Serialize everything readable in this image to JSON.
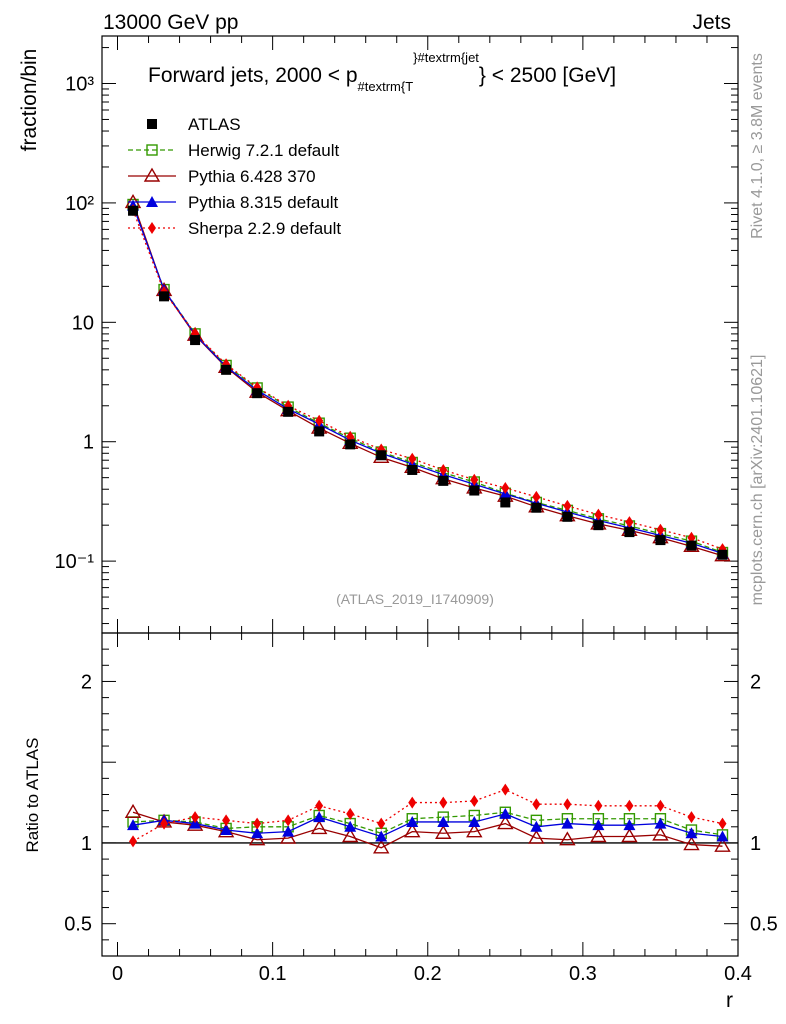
{
  "header": {
    "energy_label": "13000 GeV pp",
    "category": "Jets"
  },
  "side_labels": {
    "rivet": "Rivet 4.1.0, ≥ 3.8M events",
    "source": "mcplots.cern.ch [arXiv:2401.10621]"
  },
  "colors": {
    "ATLAS": "#000000",
    "Herwig": "#339900",
    "Pythia6": "#990000",
    "Pythia8": "#0000dd",
    "Sherpa": "#ee0000"
  },
  "chart_data": [
    {
      "type": "line",
      "title": "Forward jets, 2000 < p_{#textrm{T}}^{#textrm{jet}} < 2500 [GeV]",
      "title_parts": {
        "pre": "Forward jets, 2000 < p",
        "sub": "#textrm{T",
        "sup": "}#textrm{jet",
        "post": "} < 2500 [GeV]"
      },
      "ylabel": "fraction/bin",
      "xlabel": "r",
      "yscale": "log",
      "xlim": [
        -0.01,
        0.4
      ],
      "ylim": [
        0.025,
        2500
      ],
      "ytick_labels": [
        "10⁻¹",
        "1",
        "10",
        "10²",
        "10³"
      ],
      "ytick_values": [
        0.1,
        1,
        10,
        100,
        1000
      ],
      "watermark": "(ATLAS_2019_I1740909)",
      "x": [
        0.01,
        0.03,
        0.05,
        0.07,
        0.09,
        0.11,
        0.13,
        0.15,
        0.17,
        0.19,
        0.21,
        0.23,
        0.25,
        0.27,
        0.29,
        0.31,
        0.33,
        0.35,
        0.37,
        0.39
      ],
      "series": [
        {
          "name": "ATLAS",
          "key": "ATLAS",
          "values": [
            86,
            16.5,
            7.1,
            4.0,
            2.55,
            1.78,
            1.22,
            0.95,
            0.77,
            0.58,
            0.47,
            0.39,
            0.31,
            0.28,
            0.235,
            0.2,
            0.175,
            0.15,
            0.135,
            0.113
          ]
        },
        {
          "name": "Herwig 7.2.1 default",
          "key": "Herwig",
          "values": [
            97,
            18.8,
            8.0,
            4.35,
            2.82,
            1.95,
            1.43,
            1.07,
            0.82,
            0.67,
            0.55,
            0.46,
            0.37,
            0.31,
            0.266,
            0.226,
            0.197,
            0.17,
            0.147,
            0.118
          ]
        },
        {
          "name": "Pythia 6.428 370",
          "key": "Pythia6",
          "values": [
            101,
            18.5,
            7.8,
            4.2,
            2.6,
            1.82,
            1.3,
            0.97,
            0.74,
            0.61,
            0.49,
            0.41,
            0.35,
            0.285,
            0.24,
            0.205,
            0.181,
            0.157,
            0.133,
            0.111
          ]
        },
        {
          "name": "Pythia 8.315 default",
          "key": "Pythia8",
          "values": [
            95,
            18.7,
            7.9,
            4.25,
            2.7,
            1.88,
            1.4,
            1.03,
            0.8,
            0.65,
            0.53,
            0.44,
            0.365,
            0.305,
            0.258,
            0.219,
            0.19,
            0.164,
            0.141,
            0.116
          ]
        },
        {
          "name": "Sherpa 2.2.9 default",
          "key": "Sherpa",
          "values": [
            87,
            18.0,
            8.05,
            4.45,
            2.85,
            2.0,
            1.5,
            1.1,
            0.86,
            0.72,
            0.58,
            0.48,
            0.41,
            0.345,
            0.29,
            0.245,
            0.212,
            0.183,
            0.157,
            0.126
          ]
        }
      ],
      "legend": [
        "ATLAS",
        "Herwig 7.2.1 default",
        "Pythia 6.428 370",
        "Pythia 8.315 default",
        "Sherpa 2.2.9 default"
      ]
    },
    {
      "type": "line",
      "ylabel": "Ratio to ATLAS",
      "xlabel": "r",
      "ylim": [
        0.3,
        2.3
      ],
      "xtick_labels": [
        "0",
        "0.1",
        "0.2",
        "0.3",
        "0.4"
      ],
      "xtick_values": [
        0,
        0.1,
        0.2,
        0.3,
        0.4
      ],
      "ytick_labels": [
        "0.5",
        "1",
        "2"
      ],
      "ytick_values": [
        0.5,
        1,
        2
      ],
      "x": [
        0.01,
        0.03,
        0.05,
        0.07,
        0.09,
        0.11,
        0.13,
        0.15,
        0.17,
        0.19,
        0.21,
        0.23,
        0.25,
        0.27,
        0.29,
        0.31,
        0.33,
        0.35,
        0.37,
        0.39
      ],
      "series": [
        {
          "name": "Herwig 7.2.1 default",
          "key": "Herwig",
          "values": [
            1.13,
            1.14,
            1.13,
            1.09,
            1.1,
            1.1,
            1.17,
            1.12,
            1.06,
            1.15,
            1.16,
            1.17,
            1.19,
            1.14,
            1.15,
            1.15,
            1.15,
            1.15,
            1.08,
            1.05
          ]
        },
        {
          "name": "Pythia 6.428 370",
          "key": "Pythia6",
          "values": [
            1.19,
            1.13,
            1.11,
            1.07,
            1.02,
            1.03,
            1.09,
            1.04,
            0.97,
            1.07,
            1.06,
            1.07,
            1.12,
            1.03,
            1.02,
            1.04,
            1.04,
            1.05,
            0.99,
            0.98
          ]
        },
        {
          "name": "Pythia 8.315 default",
          "key": "Pythia8",
          "values": [
            1.11,
            1.14,
            1.12,
            1.08,
            1.06,
            1.07,
            1.16,
            1.1,
            1.04,
            1.13,
            1.13,
            1.13,
            1.18,
            1.1,
            1.12,
            1.11,
            1.11,
            1.12,
            1.06,
            1.04
          ]
        },
        {
          "name": "Sherpa 2.2.9 default",
          "key": "Sherpa",
          "values": [
            1.01,
            1.12,
            1.16,
            1.14,
            1.12,
            1.14,
            1.23,
            1.18,
            1.12,
            1.25,
            1.25,
            1.26,
            1.33,
            1.24,
            1.24,
            1.23,
            1.23,
            1.23,
            1.16,
            1.12
          ]
        }
      ]
    }
  ]
}
